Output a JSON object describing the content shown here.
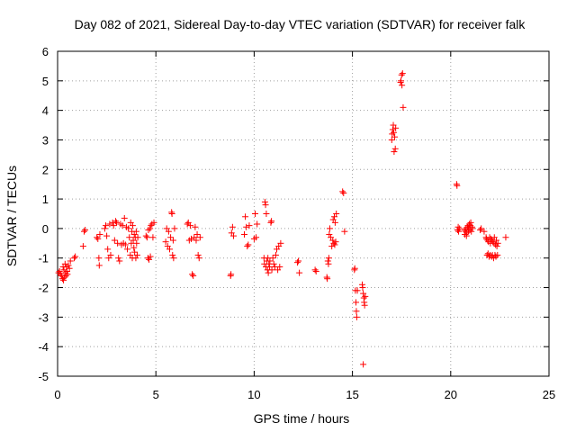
{
  "chart_data": {
    "type": "scatter",
    "title": "Day 082 of 2021, Sidereal Day-to-day VTEC variation (SDTVAR) for receiver falk",
    "xlabel": "GPS time / hours",
    "ylabel": "SDTVAR / TECUs",
    "xlim": [
      0,
      25
    ],
    "ylim": [
      -5,
      6
    ],
    "xticks": [
      0,
      5,
      10,
      15,
      20,
      25
    ],
    "yticks": [
      -5,
      -4,
      -3,
      -2,
      -1,
      0,
      1,
      2,
      3,
      4,
      5,
      6
    ],
    "grid": true,
    "marker": "+",
    "marker_color": "#ff0000",
    "series": [
      {
        "name": "SDTVAR",
        "points": [
          [
            0.05,
            -1.5
          ],
          [
            0.1,
            -1.45
          ],
          [
            0.15,
            -1.55
          ],
          [
            0.2,
            -1.6
          ],
          [
            0.25,
            -1.7
          ],
          [
            0.28,
            -1.3
          ],
          [
            0.3,
            -1.75
          ],
          [
            0.32,
            -1.4
          ],
          [
            0.35,
            -1.65
          ],
          [
            0.38,
            -1.2
          ],
          [
            0.4,
            -1.5
          ],
          [
            0.42,
            -1.6
          ],
          [
            0.45,
            -1.3
          ],
          [
            0.48,
            -1.45
          ],
          [
            0.5,
            -1.55
          ],
          [
            0.55,
            -1.25
          ],
          [
            0.6,
            -1.35
          ],
          [
            0.65,
            -1.1
          ],
          [
            0.85,
            -1.0
          ],
          [
            0.9,
            -0.95
          ],
          [
            1.3,
            -0.6
          ],
          [
            1.35,
            -0.1
          ],
          [
            1.4,
            -0.05
          ],
          [
            2.0,
            -0.3
          ],
          [
            2.05,
            -0.35
          ],
          [
            2.1,
            -1.0
          ],
          [
            2.12,
            -1.25
          ],
          [
            2.15,
            -0.2
          ],
          [
            2.4,
            0.0
          ],
          [
            2.45,
            0.1
          ],
          [
            2.5,
            -0.25
          ],
          [
            2.55,
            -0.7
          ],
          [
            2.6,
            -1.0
          ],
          [
            2.65,
            0.15
          ],
          [
            2.7,
            -0.9
          ],
          [
            2.8,
            0.2
          ],
          [
            2.85,
            0.1
          ],
          [
            2.9,
            -0.4
          ],
          [
            2.95,
            0.25
          ],
          [
            3.0,
            0.2
          ],
          [
            3.05,
            -0.5
          ],
          [
            3.1,
            -1.0
          ],
          [
            3.15,
            -1.1
          ],
          [
            3.2,
            0.15
          ],
          [
            3.25,
            -0.55
          ],
          [
            3.3,
            0.1
          ],
          [
            3.35,
            -0.5
          ],
          [
            3.4,
            0.35
          ],
          [
            3.45,
            -0.55
          ],
          [
            3.5,
            0.05
          ],
          [
            3.55,
            -0.7
          ],
          [
            3.6,
            0.0
          ],
          [
            3.65,
            -0.3
          ],
          [
            3.7,
            -0.9
          ],
          [
            3.72,
            0.2
          ],
          [
            3.75,
            -0.5
          ],
          [
            3.78,
            -0.1
          ],
          [
            3.8,
            -1.0
          ],
          [
            3.82,
            0.1
          ],
          [
            3.85,
            -0.4
          ],
          [
            3.88,
            -0.65
          ],
          [
            3.9,
            -0.2
          ],
          [
            3.92,
            -0.8
          ],
          [
            3.95,
            -0.3
          ],
          [
            3.98,
            -1.0
          ],
          [
            4.0,
            -0.1
          ],
          [
            4.02,
            -0.5
          ],
          [
            4.05,
            -0.9
          ],
          [
            4.08,
            -0.3
          ],
          [
            4.5,
            -0.25
          ],
          [
            4.55,
            -0.3
          ],
          [
            4.6,
            -1.0
          ],
          [
            4.62,
            -0.05
          ],
          [
            4.65,
            -1.05
          ],
          [
            4.7,
            0.0
          ],
          [
            4.72,
            -0.95
          ],
          [
            4.75,
            0.1
          ],
          [
            4.8,
            0.15
          ],
          [
            4.85,
            -0.3
          ],
          [
            4.9,
            0.2
          ],
          [
            5.5,
            -0.45
          ],
          [
            5.55,
            0.0
          ],
          [
            5.6,
            -0.6
          ],
          [
            5.65,
            -0.1
          ],
          [
            5.7,
            -0.7
          ],
          [
            5.75,
            -0.3
          ],
          [
            5.8,
            0.55
          ],
          [
            5.82,
            0.5
          ],
          [
            5.85,
            -0.9
          ],
          [
            5.88,
            -0.4
          ],
          [
            5.9,
            -1.0
          ],
          [
            5.95,
            0.0
          ],
          [
            6.6,
            0.15
          ],
          [
            6.65,
            0.2
          ],
          [
            6.7,
            -0.4
          ],
          [
            6.75,
            0.1
          ],
          [
            6.8,
            -0.35
          ],
          [
            6.85,
            -1.55
          ],
          [
            6.9,
            -1.6
          ],
          [
            6.95,
            -0.3
          ],
          [
            7.0,
            0.05
          ],
          [
            7.05,
            -0.4
          ],
          [
            7.1,
            -0.2
          ],
          [
            7.15,
            -0.9
          ],
          [
            7.2,
            -1.0
          ],
          [
            7.25,
            -0.3
          ],
          [
            8.8,
            -1.6
          ],
          [
            8.82,
            -1.55
          ],
          [
            8.85,
            -0.15
          ],
          [
            8.9,
            0.05
          ],
          [
            8.95,
            -0.25
          ],
          [
            9.5,
            -0.2
          ],
          [
            9.55,
            0.4
          ],
          [
            9.6,
            0.05
          ],
          [
            9.65,
            -0.6
          ],
          [
            9.7,
            -0.55
          ],
          [
            9.75,
            0.1
          ],
          [
            10.0,
            -0.35
          ],
          [
            10.05,
            0.5
          ],
          [
            10.1,
            -0.3
          ],
          [
            10.15,
            0.15
          ],
          [
            10.5,
            -1.0
          ],
          [
            10.52,
            -1.2
          ],
          [
            10.55,
            0.9
          ],
          [
            10.58,
            0.8
          ],
          [
            10.6,
            -1.3
          ],
          [
            10.62,
            0.5
          ],
          [
            10.65,
            -1.1
          ],
          [
            10.68,
            -1.4
          ],
          [
            10.7,
            -1.0
          ],
          [
            10.72,
            -1.5
          ],
          [
            10.75,
            -1.2
          ],
          [
            10.78,
            -1.3
          ],
          [
            10.8,
            -1.1
          ],
          [
            10.85,
            0.2
          ],
          [
            10.88,
            0.25
          ],
          [
            10.9,
            -1.4
          ],
          [
            10.95,
            -1.0
          ],
          [
            11.0,
            -1.2
          ],
          [
            11.05,
            -1.3
          ],
          [
            11.1,
            -0.9
          ],
          [
            11.15,
            -0.7
          ],
          [
            11.2,
            -1.4
          ],
          [
            11.25,
            -0.6
          ],
          [
            11.3,
            -1.3
          ],
          [
            11.35,
            -0.5
          ],
          [
            12.2,
            -1.15
          ],
          [
            12.25,
            -1.1
          ],
          [
            12.3,
            -1.5
          ],
          [
            13.1,
            -1.4
          ],
          [
            13.15,
            -1.45
          ],
          [
            13.7,
            -1.65
          ],
          [
            13.72,
            -1.7
          ],
          [
            13.75,
            -1.1
          ],
          [
            13.78,
            -1.2
          ],
          [
            13.8,
            -1.0
          ],
          [
            13.82,
            -0.2
          ],
          [
            13.85,
            0.0
          ],
          [
            13.9,
            -0.3
          ],
          [
            13.95,
            -0.6
          ],
          [
            14.0,
            -0.4
          ],
          [
            14.02,
            0.3
          ],
          [
            14.05,
            -0.5
          ],
          [
            14.08,
            0.4
          ],
          [
            14.1,
            -0.55
          ],
          [
            14.12,
            0.2
          ],
          [
            14.15,
            -0.45
          ],
          [
            14.18,
            0.5
          ],
          [
            14.5,
            1.25
          ],
          [
            14.55,
            1.2
          ],
          [
            14.6,
            -0.1
          ],
          [
            15.1,
            -1.4
          ],
          [
            15.12,
            -1.35
          ],
          [
            15.15,
            -2.1
          ],
          [
            15.18,
            -2.5
          ],
          [
            15.2,
            -2.8
          ],
          [
            15.22,
            -3.0
          ],
          [
            15.25,
            -2.1
          ],
          [
            15.5,
            -1.9
          ],
          [
            15.52,
            -2.0
          ],
          [
            15.55,
            -2.2
          ],
          [
            15.58,
            -2.35
          ],
          [
            15.6,
            -2.5
          ],
          [
            15.62,
            -2.6
          ],
          [
            15.65,
            -2.3
          ],
          [
            15.55,
            -4.6
          ],
          [
            17.0,
            3.0
          ],
          [
            17.02,
            3.2
          ],
          [
            17.05,
            3.35
          ],
          [
            17.08,
            3.5
          ],
          [
            17.1,
            3.25
          ],
          [
            17.12,
            2.6
          ],
          [
            17.15,
            3.1
          ],
          [
            17.18,
            2.7
          ],
          [
            17.2,
            3.4
          ],
          [
            17.45,
            4.95
          ],
          [
            17.47,
            5.0
          ],
          [
            17.5,
            5.2
          ],
          [
            17.52,
            4.85
          ],
          [
            17.55,
            5.25
          ],
          [
            17.58,
            4.1
          ],
          [
            20.3,
            1.5
          ],
          [
            20.32,
            1.45
          ],
          [
            20.35,
            -0.05
          ],
          [
            20.38,
            0.05
          ],
          [
            20.4,
            -0.1
          ],
          [
            20.45,
            0.0
          ],
          [
            20.7,
            -0.05
          ],
          [
            20.72,
            -0.2
          ],
          [
            20.75,
            -0.1
          ],
          [
            20.78,
            0.0
          ],
          [
            20.8,
            -0.25
          ],
          [
            20.82,
            -0.15
          ],
          [
            20.85,
            0.05
          ],
          [
            20.88,
            0.1
          ],
          [
            20.9,
            -0.1
          ],
          [
            20.92,
            0.0
          ],
          [
            20.95,
            0.15
          ],
          [
            20.98,
            -0.05
          ],
          [
            21.0,
            0.1
          ],
          [
            21.02,
            0.2
          ],
          [
            21.05,
            -0.1
          ],
          [
            21.08,
            0.05
          ],
          [
            21.1,
            0.0
          ],
          [
            21.5,
            -0.05
          ],
          [
            21.55,
            0.0
          ],
          [
            21.7,
            -0.1
          ],
          [
            21.8,
            -0.3
          ],
          [
            21.82,
            -0.35
          ],
          [
            21.85,
            -0.9
          ],
          [
            21.88,
            -0.4
          ],
          [
            21.9,
            -0.85
          ],
          [
            21.92,
            -0.45
          ],
          [
            21.95,
            -0.95
          ],
          [
            21.98,
            -0.3
          ],
          [
            22.0,
            -0.9
          ],
          [
            22.02,
            -0.5
          ],
          [
            22.05,
            -0.35
          ],
          [
            22.08,
            -0.95
          ],
          [
            22.1,
            -0.4
          ],
          [
            22.12,
            -0.9
          ],
          [
            22.15,
            -0.45
          ],
          [
            22.18,
            -1.0
          ],
          [
            22.2,
            -0.5
          ],
          [
            22.22,
            -0.3
          ],
          [
            22.25,
            -0.9
          ],
          [
            22.28,
            -0.55
          ],
          [
            22.3,
            -0.95
          ],
          [
            22.32,
            -0.4
          ],
          [
            22.35,
            -0.6
          ],
          [
            22.38,
            -0.9
          ],
          [
            22.4,
            -0.5
          ],
          [
            22.8,
            -0.3
          ]
        ]
      }
    ]
  }
}
